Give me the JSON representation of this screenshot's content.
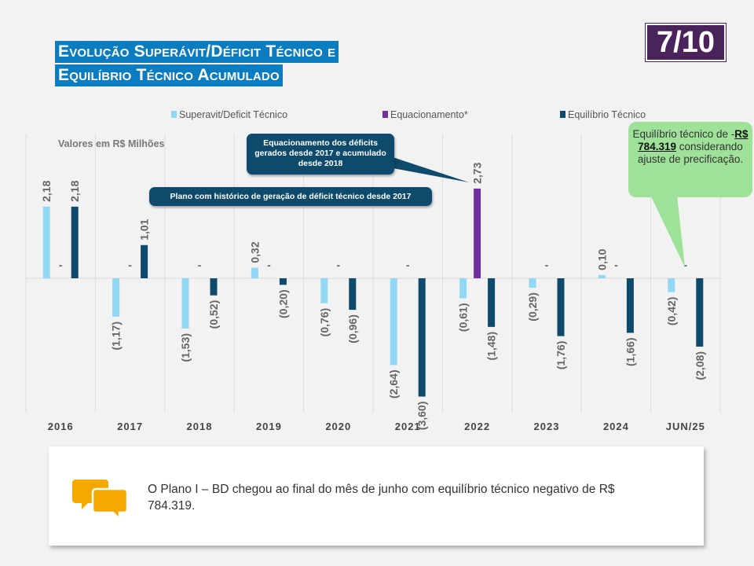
{
  "header": {
    "title_line1": "Evolução Superávit/Déficit Técnico e",
    "title_line2": "Equilíbrio Técnico Acumulado",
    "page_indicator": "7/10"
  },
  "colors": {
    "superavit": "#92d8f5",
    "equacionamento": "#7030a0",
    "equilibrio": "#0d4a6b"
  },
  "chart_data": {
    "type": "bar",
    "units_label": "Valores em R$ Milhões",
    "categories": [
      "2016",
      "2017",
      "2018",
      "2019",
      "2020",
      "2021",
      "2022",
      "2023",
      "2024",
      "JUN/25"
    ],
    "series": [
      {
        "name": "Superavit/Deficit Técnico",
        "values": [
          2.18,
          -1.17,
          -1.53,
          0.32,
          -0.76,
          -2.64,
          -0.61,
          -0.29,
          0.1,
          -0.42
        ],
        "labels": [
          "2,18",
          "(1,17)",
          "(1,53)",
          "0,32",
          "(0,76)",
          "(2,64)",
          "(0,61)",
          "(0,29)",
          "0,10",
          "(0,42)"
        ]
      },
      {
        "name": "Equacionamento*",
        "values": [
          0,
          0,
          0,
          0,
          0,
          0,
          2.73,
          0,
          0,
          0
        ],
        "labels": [
          "-",
          "-",
          "-",
          "-",
          "-",
          "-",
          "2,73",
          "-",
          "-",
          "-"
        ]
      },
      {
        "name": "Equilíbrio Técnico",
        "values": [
          2.18,
          1.01,
          -0.52,
          -0.2,
          -0.96,
          -3.6,
          -1.48,
          -1.76,
          -1.66,
          -2.08
        ],
        "labels": [
          "2,18",
          "1,01",
          "(0,52)",
          "(0,20)",
          "(0,96)",
          "(3,60)",
          "(1,48)",
          "(1,76)",
          "(1,66)",
          "(2,08)"
        ]
      }
    ],
    "ylim": [
      -4.0,
      4.3
    ],
    "legend_position": "top"
  },
  "callouts": {
    "equacionamento": "Equacionamento dos déficits gerados desde 2017 e acumulado desde 2018",
    "plano": "Plano com histórico de geração de déficit técnico desde 2017",
    "equilibrio_prefix": "Equilíbrio técnico de -",
    "equilibrio_value": "R$ 784.319",
    "equilibrio_suffix": "considerando ajuste de precificação."
  },
  "note": {
    "text": "O Plano I – BD chegou ao final do mês de junho com equilíbrio técnico negativo de R$ 784.319.",
    "icon": "speech-bubbles-icon"
  }
}
